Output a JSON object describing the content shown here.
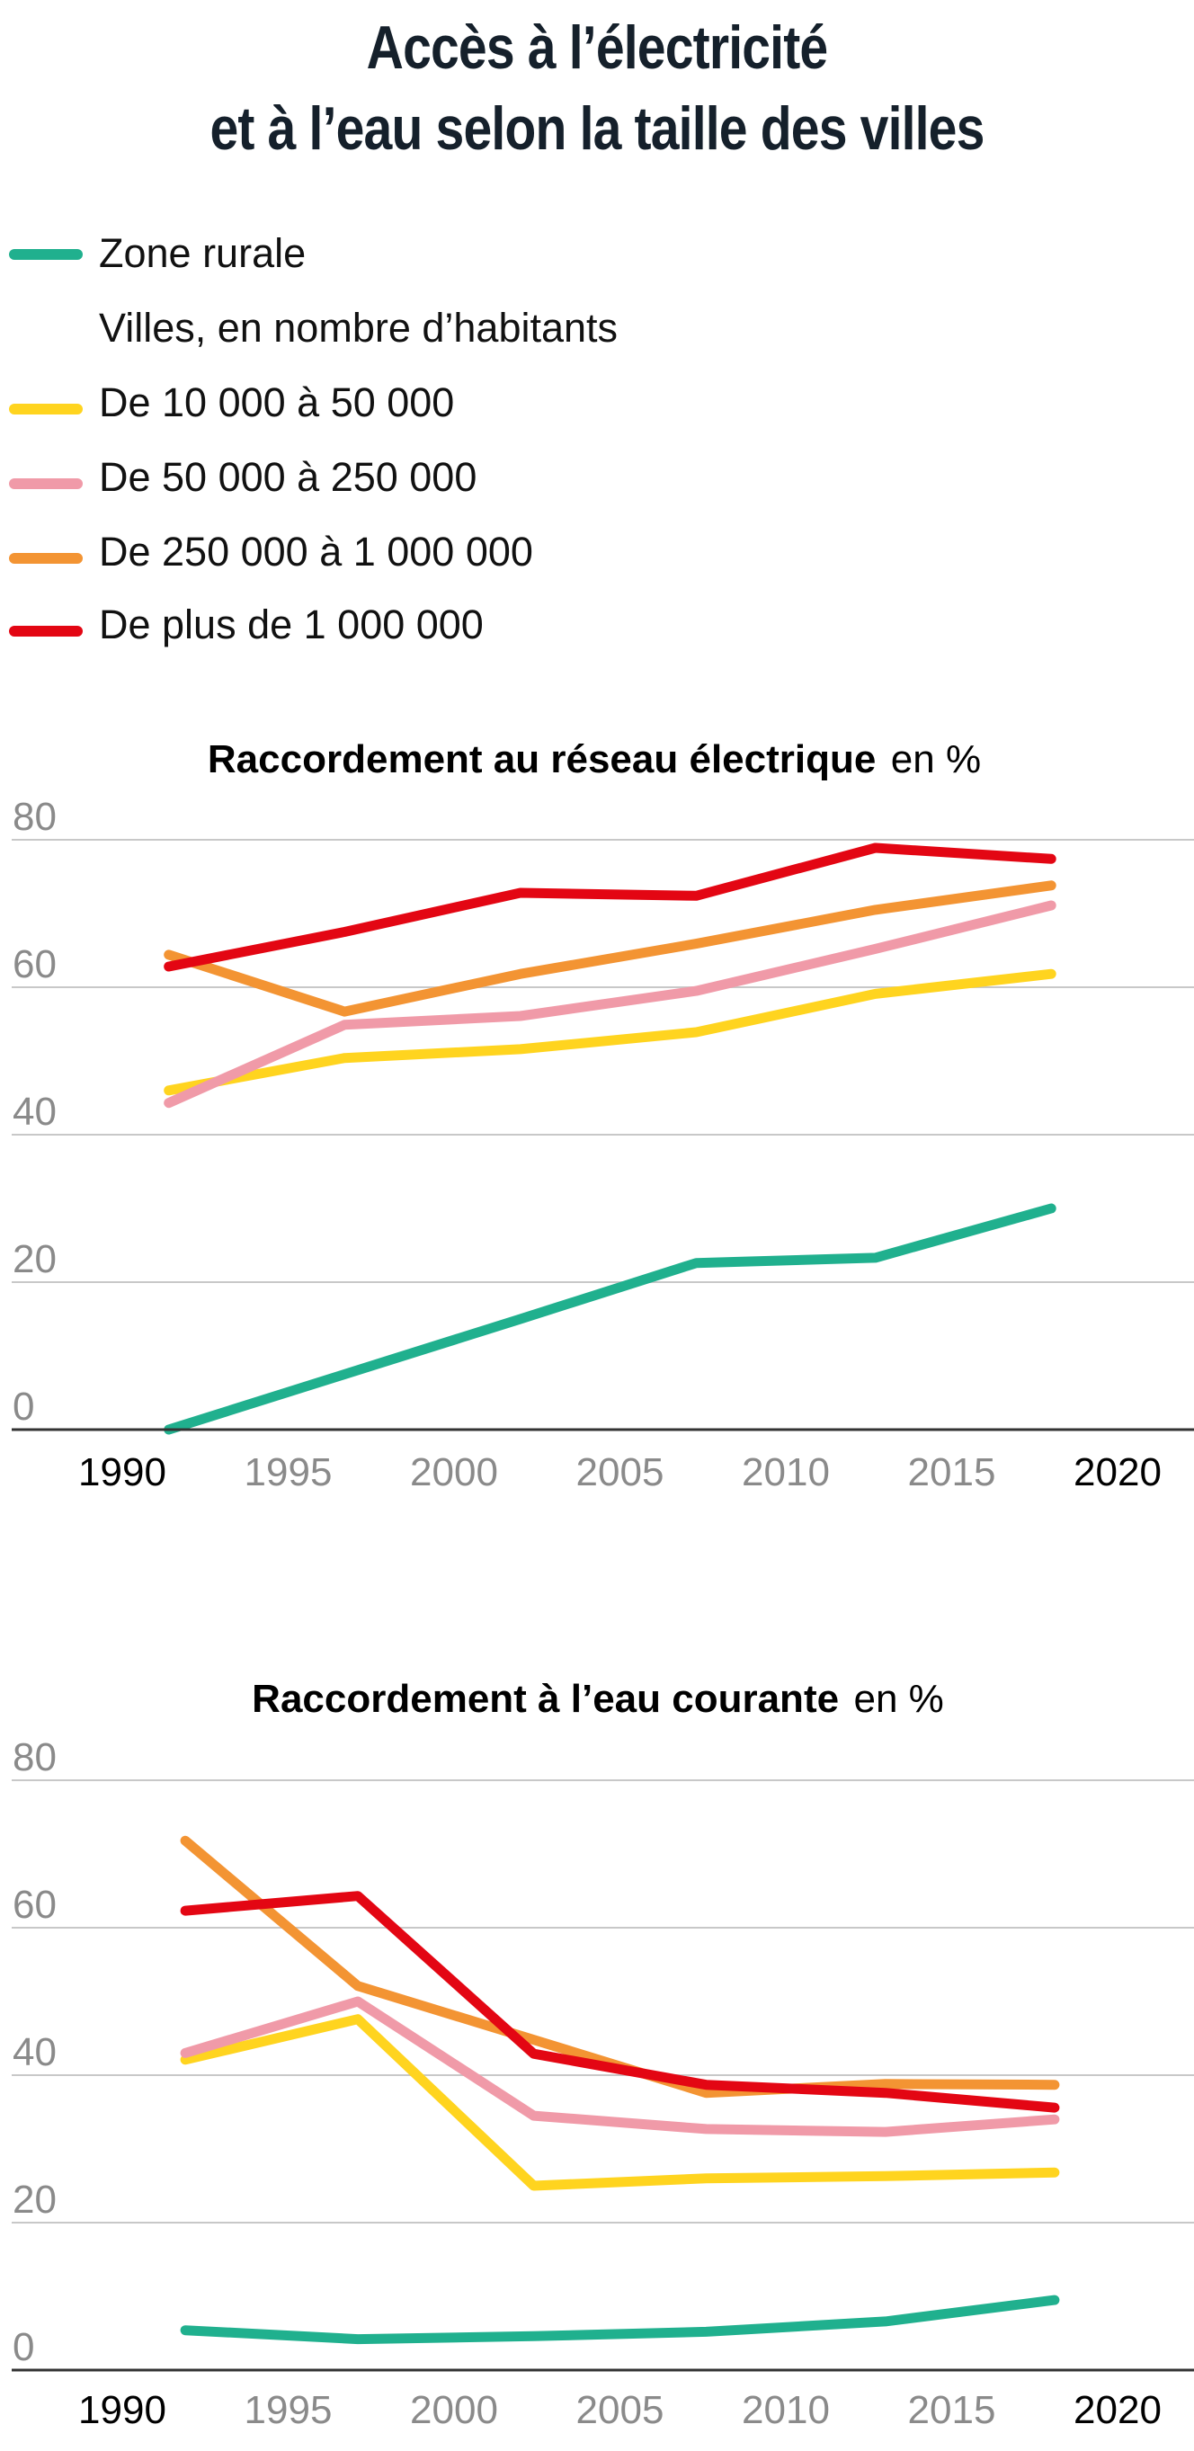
{
  "title": {
    "line1": "Accès à l’électricité",
    "line2": "et à l’eau selon la taille des villes"
  },
  "legend": {
    "items": [
      {
        "key": "rural",
        "label": "Zone rurale",
        "color": "#20B08E"
      },
      {
        "key": "subtitle",
        "label": "Villes, en nombre d’habitants",
        "color": null
      },
      {
        "key": "c10k",
        "label": "De 10 000 à 50 000",
        "color": "#FFD41F"
      },
      {
        "key": "c50k",
        "label": "De 50 000 à 250 000",
        "color": "#F09AA8"
      },
      {
        "key": "c250k",
        "label": "De 250 000 à 1 000 000",
        "color": "#F39433"
      },
      {
        "key": "c1m",
        "label": "De plus de 1 000 000",
        "color": "#E30613"
      }
    ]
  },
  "colors": {
    "title": "#15202b",
    "grid": "#c8c8c8",
    "axis": "#333333",
    "tick_muted": "#8a8a8a",
    "tick_strong": "#000000"
  },
  "chart_data": [
    {
      "type": "line",
      "title": "Raccordement au réseau électrique",
      "title_unit": "en %",
      "xlabel": "",
      "ylabel": "%",
      "xlim": [
        1990,
        2020
      ],
      "ylim": [
        0,
        80
      ],
      "grid": true,
      "legend": "top-left (shared)",
      "yticks": [
        0,
        20,
        40,
        60,
        80
      ],
      "xticks": [
        {
          "value": 1990,
          "label": "1990",
          "strong": true
        },
        {
          "value": 1995,
          "label": "1995",
          "strong": false
        },
        {
          "value": 2000,
          "label": "2000",
          "strong": false
        },
        {
          "value": 2005,
          "label": "2005",
          "strong": false
        },
        {
          "value": 2010,
          "label": "2010",
          "strong": false
        },
        {
          "value": 2015,
          "label": "2015",
          "strong": false
        },
        {
          "value": 2020,
          "label": "2020",
          "strong": true
        }
      ],
      "x": [
        1991.4,
        1996.7,
        2002,
        2007.3,
        2012.7,
        2018
      ],
      "series": [
        {
          "name": "Zone rurale",
          "color": "#20B08E",
          "values": [
            0,
            7.5,
            15,
            22.6,
            23.3,
            30
          ]
        },
        {
          "name": "De 10 000 à 50 000",
          "color": "#FFD41F",
          "values": [
            46,
            50.4,
            51.6,
            53.9,
            59.1,
            61.8
          ]
        },
        {
          "name": "De 50 000 à 250 000",
          "color": "#F09AA8",
          "values": [
            44.3,
            54.9,
            56.1,
            59.5,
            65.2,
            71.1
          ]
        },
        {
          "name": "De 250 000 à 1 000 000",
          "color": "#F39433",
          "values": [
            64.4,
            56.7,
            61.8,
            65.9,
            70.5,
            73.8
          ]
        },
        {
          "name": "De plus de 1 000 000",
          "color": "#E30613",
          "values": [
            62.8,
            67.5,
            72.8,
            72.4,
            78.9,
            77.4
          ]
        }
      ]
    },
    {
      "type": "line",
      "title": "Raccordement à l’eau courante",
      "title_unit": "en %",
      "xlabel": "",
      "ylabel": "%",
      "xlim": [
        1990,
        2020
      ],
      "ylim": [
        0,
        80
      ],
      "grid": true,
      "legend": "top-left (shared)",
      "yticks": [
        0,
        20,
        40,
        60,
        80
      ],
      "xticks": [
        {
          "value": 1990,
          "label": "1990",
          "strong": true
        },
        {
          "value": 1995,
          "label": "1995",
          "strong": false
        },
        {
          "value": 2000,
          "label": "2000",
          "strong": false
        },
        {
          "value": 2005,
          "label": "2005",
          "strong": false
        },
        {
          "value": 2010,
          "label": "2010",
          "strong": false
        },
        {
          "value": 2015,
          "label": "2015",
          "strong": false
        },
        {
          "value": 2020,
          "label": "2020",
          "strong": true
        }
      ],
      "x": [
        1991.9,
        1997.1,
        2002.4,
        2007.6,
        2013.0,
        2018.1
      ],
      "series": [
        {
          "name": "Zone rurale",
          "color": "#20B08E",
          "values": [
            5.4,
            4.2,
            4.6,
            5.2,
            6.6,
            9.5
          ]
        },
        {
          "name": "De 10 000 à 50 000",
          "color": "#FFD41F",
          "values": [
            42.1,
            47.6,
            25.0,
            26.0,
            26.3,
            26.8
          ]
        },
        {
          "name": "De 50 000 à 250 000",
          "color": "#F09AA8",
          "values": [
            43.0,
            50.0,
            34.5,
            32.7,
            32.3,
            34.0
          ]
        },
        {
          "name": "De 250 000 à 1 000 000",
          "color": "#F39433",
          "values": [
            71.8,
            52.1,
            44.8,
            37.6,
            38.8,
            38.7
          ]
        },
        {
          "name": "De plus de 1 000 000",
          "color": "#E30613",
          "values": [
            62.3,
            64.3,
            42.9,
            38.7,
            37.6,
            35.6
          ]
        }
      ]
    }
  ]
}
